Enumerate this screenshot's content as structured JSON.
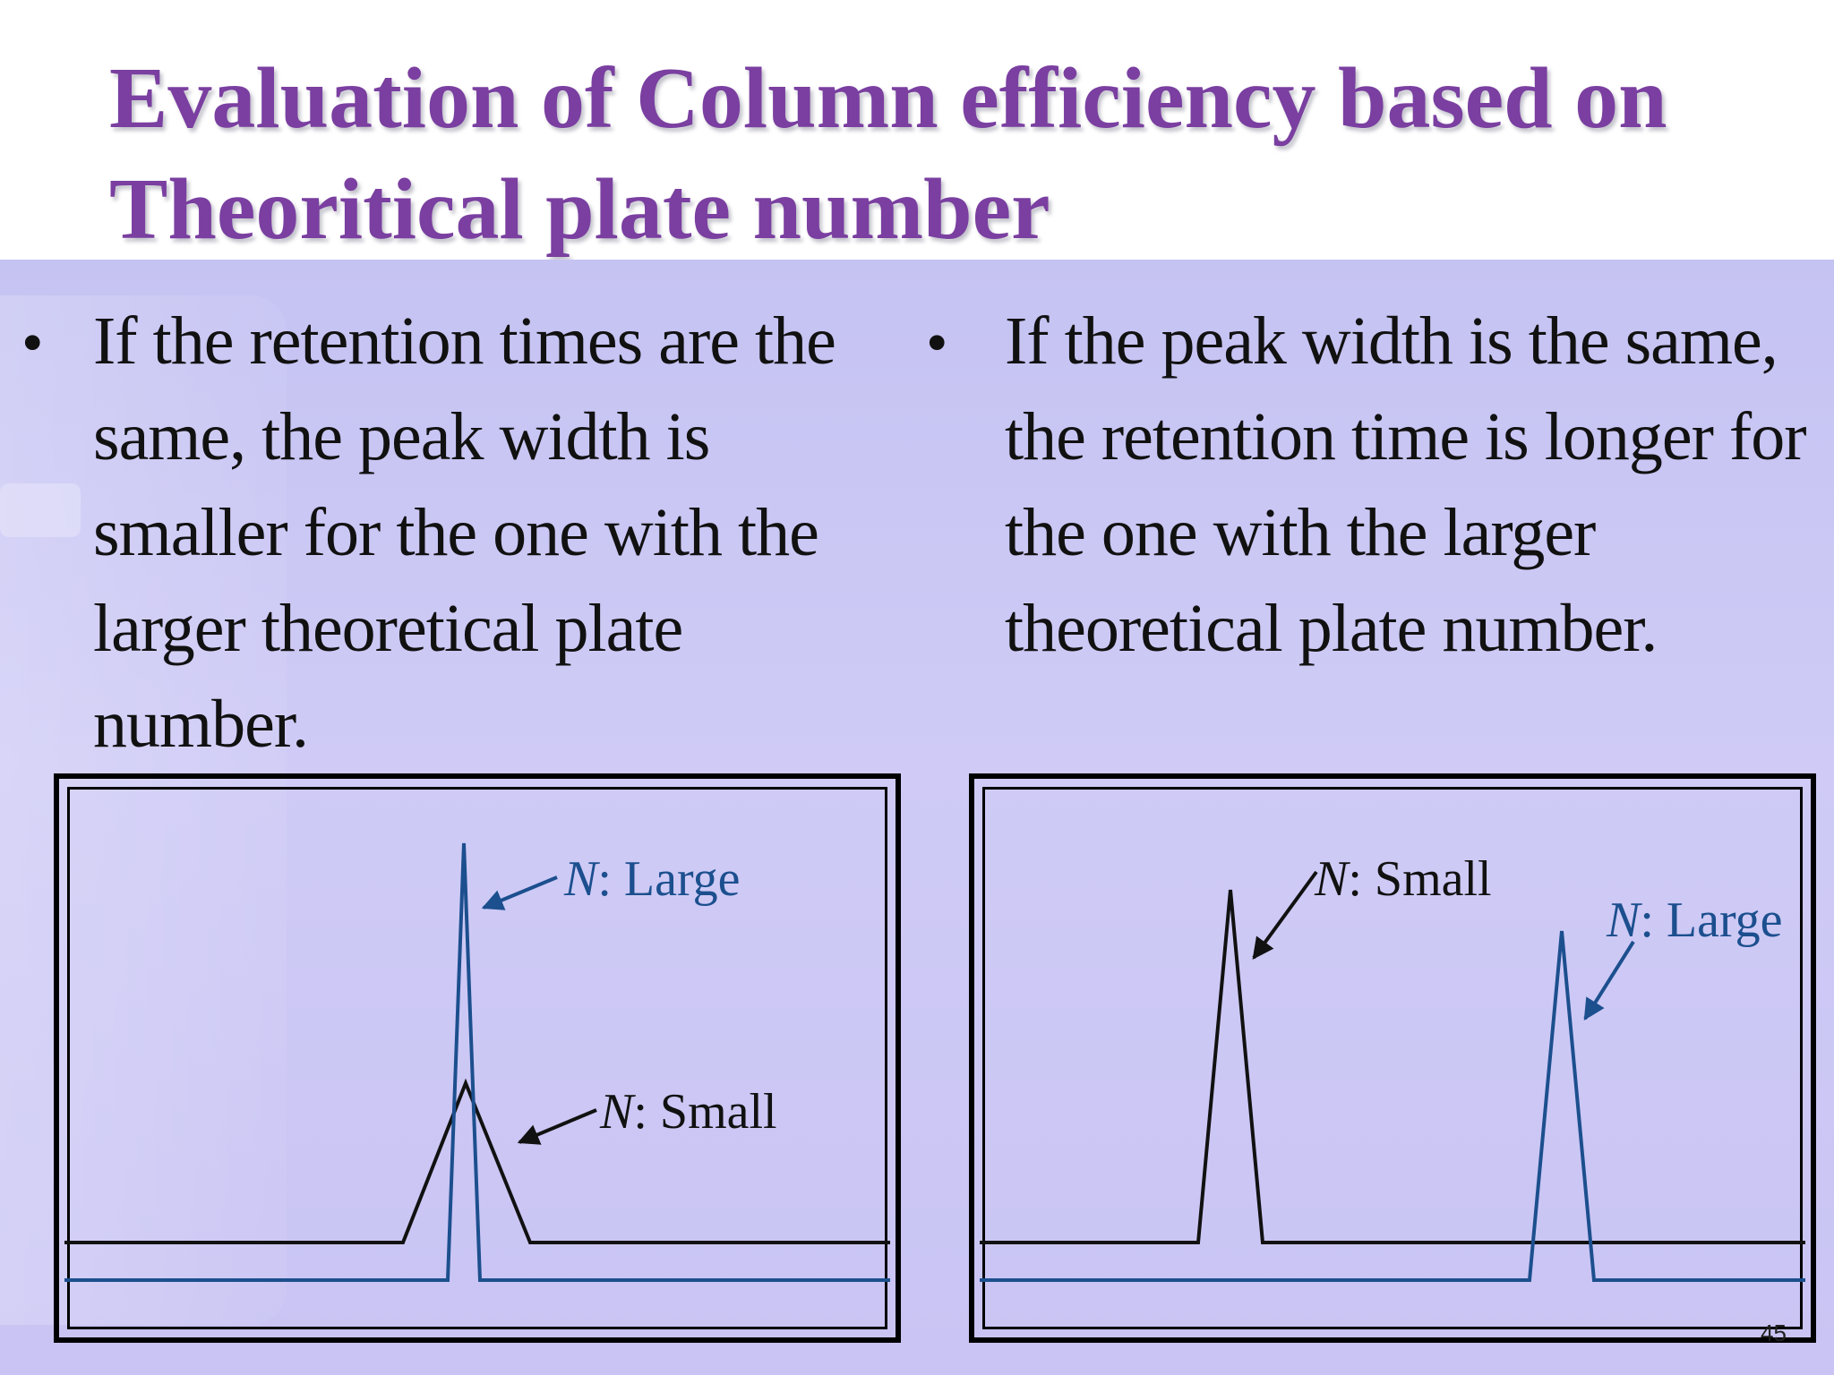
{
  "slide": {
    "title": "Evaluation of Column efficiency based on Theoritical plate number",
    "page_number": "45"
  },
  "bullets": {
    "left": "If the retention times are the same, the peak width is smaller for the one with the larger theoretical plate number.",
    "right": "If the peak width is the same, the retention time is longer for the one with the larger theoretical plate number."
  },
  "diagrams": {
    "left": {
      "label_large_n": "N",
      "label_large_text": ": Large",
      "label_small_n": "N",
      "label_small_text": ": Small"
    },
    "right": {
      "label_small_n": "N",
      "label_small_text": ": Small",
      "label_large_n": "N",
      "label_large_text": ": Large"
    }
  },
  "colors": {
    "title": "#7a3fa0",
    "blue_trace": "#1c4f8e",
    "black_trace": "#111111"
  }
}
